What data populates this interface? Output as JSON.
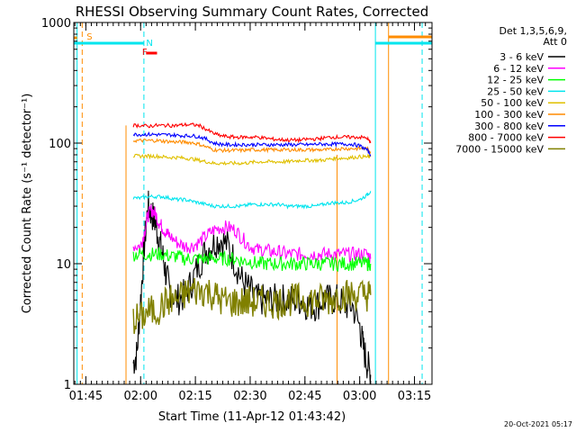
{
  "chart_data": {
    "type": "line",
    "title": "RHESSI Observing Summary Count Rates, Corrected",
    "xlabel": "Start Time (11-Apr-12 01:43:42)",
    "ylabel": "Corrected Count Rate (s⁻¹ detector⁻¹)",
    "y_scale": "log",
    "ylim": [
      1,
      1000
    ],
    "xlim_minutes": [
      -3,
      35
    ],
    "x_tick_labels": [
      "01:45",
      "02:00",
      "02:15",
      "02:30",
      "02:45",
      "03:00",
      "03:15"
    ],
    "x_tick_minutes": [
      105,
      120,
      135,
      150,
      165,
      180,
      195
    ],
    "y_tick_labels": [
      "1",
      "10",
      "100",
      "1000"
    ],
    "y_tick_values": [
      1,
      10,
      100,
      1000
    ],
    "legend_title": "Det 1,3,5,6,9,",
    "legend_subtitle": "Att 0",
    "legend_position": "right",
    "timestamp": "20-Oct-2021 05:17",
    "markers": [
      {
        "label": "S",
        "color": "#ff8c00",
        "minute": 105
      },
      {
        "label": "N",
        "color": "#00e5ee",
        "minute": 120
      },
      {
        "label": "F",
        "color": "#ff0000",
        "minute": 125
      }
    ],
    "series": [
      {
        "name": "3 - 6 keV",
        "color": "#000000",
        "x": [
          118,
          119,
          120,
          121,
          122,
          123,
          124,
          125,
          126,
          127,
          128,
          130,
          132,
          134,
          136,
          138,
          140,
          142,
          144,
          146,
          148,
          150,
          152,
          154,
          156,
          158,
          160,
          162,
          164,
          166,
          168,
          170,
          172,
          174,
          176,
          178,
          180,
          181,
          182,
          183
        ],
        "y": [
          1.5,
          1.8,
          5,
          14,
          30,
          26,
          22,
          16,
          12,
          8,
          6,
          5,
          5.5,
          7,
          10,
          13,
          15,
          16,
          14,
          10,
          7,
          6,
          5,
          5,
          5,
          5,
          5,
          5,
          5,
          4.5,
          4.5,
          5,
          5,
          5,
          4.5,
          4.5,
          3,
          2,
          1.5,
          1.2
        ]
      },
      {
        "name": "6 - 12 keV",
        "color": "#ff00ff",
        "x": [
          118,
          120,
          121,
          122,
          123,
          124,
          125,
          126,
          127,
          128,
          130,
          132,
          134,
          136,
          138,
          140,
          142,
          144,
          146,
          148,
          150,
          152,
          154,
          156,
          158,
          160,
          162,
          164,
          166,
          168,
          170,
          172,
          174,
          176,
          178,
          180,
          182,
          183
        ],
        "y": [
          14,
          14,
          18,
          25,
          28,
          26,
          22,
          20,
          18,
          17,
          15,
          14,
          14,
          15,
          17,
          19,
          20,
          20,
          19,
          16,
          14,
          13,
          13,
          12.5,
          12.5,
          12,
          12,
          12,
          12,
          12,
          12,
          12,
          12,
          12,
          12,
          12,
          12,
          11
        ]
      },
      {
        "name": "12 - 25 keV",
        "color": "#00ff00",
        "x": [
          118,
          120,
          122,
          124,
          126,
          128,
          130,
          132,
          134,
          136,
          138,
          140,
          142,
          144,
          146,
          148,
          150,
          152,
          154,
          156,
          158,
          160,
          162,
          164,
          166,
          168,
          170,
          172,
          174,
          176,
          178,
          180,
          182,
          183
        ],
        "y": [
          12,
          12,
          12,
          12,
          12,
          11.5,
          11.5,
          11,
          11,
          11,
          11,
          11,
          11,
          11,
          11,
          10.5,
          10.5,
          10,
          10,
          10,
          10,
          10,
          10,
          10,
          10,
          10,
          10,
          10,
          10,
          10,
          10,
          10,
          10,
          10
        ]
      },
      {
        "name": "25 - 50 keV",
        "color": "#00e5ee",
        "x": [
          118,
          120,
          122,
          124,
          126,
          128,
          130,
          132,
          134,
          136,
          138,
          140,
          142,
          144,
          146,
          148,
          150,
          152,
          154,
          156,
          158,
          160,
          162,
          164,
          166,
          168,
          170,
          172,
          174,
          176,
          178,
          180,
          182,
          183
        ],
        "y": [
          35,
          35,
          36,
          36,
          36,
          35,
          34,
          34,
          33,
          32,
          31,
          30,
          30,
          30,
          30,
          30,
          31,
          31,
          31,
          31,
          31,
          30,
          30,
          30,
          30,
          30,
          31,
          32,
          32,
          32,
          33,
          34,
          37,
          40
        ]
      },
      {
        "name": "50 - 100 keV",
        "color": "#e0c000",
        "x": [
          118,
          120,
          122,
          124,
          126,
          128,
          130,
          132,
          134,
          136,
          138,
          140,
          142,
          144,
          146,
          148,
          150,
          152,
          154,
          156,
          158,
          160,
          162,
          164,
          166,
          168,
          170,
          172,
          174,
          176,
          178,
          180,
          182,
          183
        ],
        "y": [
          78,
          78,
          78,
          78,
          77,
          76,
          76,
          75,
          74,
          72,
          70,
          68,
          68,
          68,
          68,
          68,
          69,
          70,
          70,
          70,
          70,
          70,
          71,
          72,
          72,
          72,
          72,
          74,
          75,
          75,
          76,
          77,
          77,
          77
        ]
      },
      {
        "name": "100 - 300 keV",
        "color": "#ff8c00",
        "x": [
          118,
          120,
          122,
          124,
          126,
          128,
          130,
          132,
          134,
          136,
          138,
          140,
          142,
          144,
          146,
          148,
          150,
          152,
          154,
          156,
          158,
          160,
          162,
          164,
          166,
          168,
          170,
          172,
          174,
          176,
          178,
          180,
          182,
          183
        ],
        "y": [
          105,
          105,
          105,
          105,
          104,
          103,
          102,
          102,
          101,
          98,
          93,
          88,
          87,
          87,
          87,
          87,
          88,
          88,
          88,
          88,
          88,
          88,
          88,
          88,
          88,
          88,
          88,
          88,
          90,
          90,
          90,
          90,
          90,
          85
        ]
      },
      {
        "name": "300 - 800 keV",
        "color": "#0000ff",
        "x": [
          118,
          120,
          122,
          124,
          126,
          128,
          130,
          132,
          134,
          136,
          138,
          140,
          142,
          144,
          146,
          148,
          150,
          152,
          154,
          156,
          158,
          160,
          162,
          164,
          166,
          168,
          170,
          172,
          174,
          176,
          178,
          180,
          182,
          183
        ],
        "y": [
          118,
          118,
          118,
          118,
          117,
          117,
          116,
          115,
          115,
          113,
          108,
          100,
          98,
          97,
          97,
          97,
          97,
          97,
          97,
          97,
          97,
          97,
          97,
          97,
          97,
          98,
          98,
          98,
          98,
          98,
          98,
          95,
          88,
          80
        ]
      },
      {
        "name": "800 - 7000 keV",
        "color": "#ff0000",
        "x": [
          118,
          120,
          122,
          124,
          126,
          128,
          130,
          132,
          134,
          136,
          138,
          140,
          142,
          144,
          146,
          148,
          150,
          152,
          154,
          156,
          158,
          160,
          162,
          164,
          166,
          168,
          170,
          172,
          174,
          176,
          178,
          180,
          182,
          183
        ],
        "y": [
          140,
          140,
          138,
          140,
          140,
          140,
          140,
          142,
          142,
          140,
          130,
          120,
          115,
          113,
          112,
          112,
          112,
          112,
          110,
          108,
          107,
          106,
          106,
          106,
          108,
          108,
          110,
          112,
          112,
          112,
          112,
          112,
          110,
          100
        ]
      },
      {
        "name": "7000 - 15000 keV",
        "color": "#808000",
        "x": [
          118,
          120,
          122,
          124,
          126,
          128,
          130,
          132,
          134,
          136,
          138,
          140,
          142,
          144,
          146,
          148,
          150,
          152,
          154,
          156,
          158,
          160,
          162,
          164,
          166,
          168,
          170,
          172,
          174,
          176,
          178,
          180,
          182,
          183
        ],
        "y": [
          3.5,
          3.5,
          4,
          4,
          4.5,
          5,
          5,
          5.5,
          6,
          6,
          6,
          5.5,
          5,
          4.8,
          4.8,
          4.8,
          4.8,
          4.8,
          4.8,
          4.8,
          4.8,
          5,
          5,
          5,
          5,
          5,
          5,
          5,
          5.5,
          5.5,
          5.5,
          5.5,
          5.5,
          5.5
        ]
      }
    ]
  }
}
